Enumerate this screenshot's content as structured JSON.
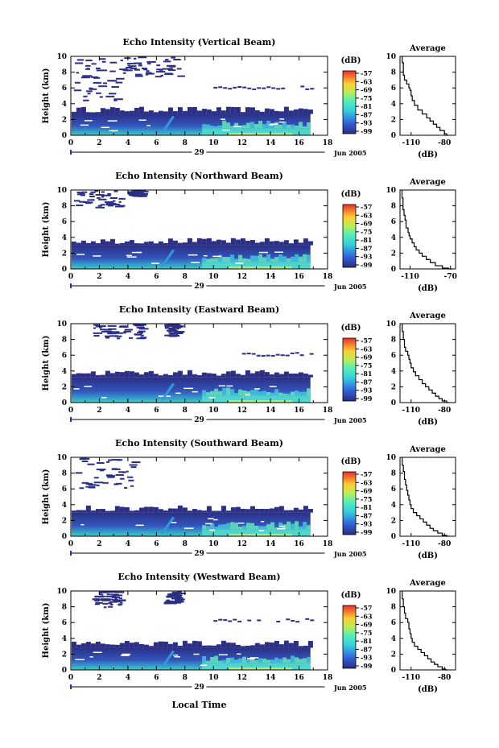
{
  "figure": {
    "xlabel": "Local Time",
    "date_label": "Jun 2005",
    "day_label": "29",
    "colorbar_unit": "(dB)",
    "colorbar_ticks": [
      -57,
      -63,
      -69,
      -75,
      -81,
      -87,
      -93,
      -99
    ],
    "colors": {
      "cb_low": "#2a2a8a",
      "cb_mid": "#33cccc",
      "cb_high": "#e8302a"
    }
  },
  "chart_data": [
    {
      "type": "heatmap",
      "title": "Echo Intensity (Vertical Beam)",
      "ylabel": "Height (km)",
      "xlim": [
        0,
        18
      ],
      "ylim": [
        0,
        10
      ],
      "xticks": [
        0,
        2,
        4,
        6,
        8,
        10,
        12,
        14,
        16,
        18
      ],
      "yticks": [
        0,
        2,
        4,
        6,
        8,
        10
      ],
      "data_end_hour": 16.8,
      "low_layer_top_km": 2.7,
      "upper_echo": [
        {
          "x": [
            0.2,
            3.5
          ],
          "y": [
            4.5,
            10
          ]
        },
        {
          "x": [
            3.5,
            7.5
          ],
          "y": [
            7.5,
            10
          ]
        }
      ],
      "thin_layer": {
        "x": [
          10,
          16.8
        ],
        "y": 5.9
      }
    },
    {
      "type": "line",
      "title": "Average",
      "xlabel": "(dB)",
      "xticks": [
        -110,
        -80
      ],
      "yticks": [
        0,
        2,
        4,
        6,
        8,
        10
      ],
      "xlim": [
        -120,
        -70
      ],
      "ylim": [
        0,
        10
      ],
      "x": [
        -118,
        -117,
        -117,
        -116,
        -114,
        -112,
        -111,
        -110,
        -110,
        -109,
        -107,
        -104,
        -100,
        -96,
        -93,
        -90,
        -87,
        -84,
        -80,
        -78,
        -77
      ],
      "y": [
        10,
        9.2,
        8.5,
        7.6,
        7.0,
        6.5,
        6.0,
        5.7,
        5.4,
        5.0,
        4.4,
        3.8,
        3.2,
        2.7,
        2.2,
        1.8,
        1.4,
        1.0,
        0.6,
        0.2,
        0
      ]
    },
    {
      "type": "heatmap",
      "title": "Echo Intensity (Northward Beam)",
      "ylabel": "Height (km)",
      "xlim": [
        0,
        18
      ],
      "ylim": [
        0,
        10
      ],
      "xticks": [
        0,
        2,
        4,
        6,
        8,
        10,
        12,
        14,
        16,
        18
      ],
      "yticks": [
        0,
        2,
        4,
        6,
        8,
        10
      ],
      "data_end_hour": 16.8,
      "low_layer_top_km": 3.0,
      "upper_echo": [
        {
          "x": [
            0.2,
            3.5
          ],
          "y": [
            7.8,
            10
          ]
        },
        {
          "x": [
            4,
            5
          ],
          "y": [
            9.3,
            10
          ]
        }
      ],
      "thin_layer": null
    },
    {
      "type": "line",
      "title": "Average",
      "xlabel": "(dB)",
      "xticks": [
        -110,
        -70
      ],
      "yticks": [
        0,
        2,
        4,
        6,
        8,
        10
      ],
      "xlim": [
        -120,
        -65
      ],
      "ylim": [
        0,
        10
      ],
      "x": [
        -118,
        -117,
        -117,
        -116,
        -115,
        -114,
        -114,
        -112,
        -111,
        -110,
        -108,
        -106,
        -104,
        -101,
        -98,
        -94,
        -90,
        -85,
        -78,
        -72,
        -68
      ],
      "y": [
        10,
        9.0,
        8.2,
        7.5,
        6.8,
        6.2,
        5.8,
        5.2,
        4.6,
        4.2,
        3.8,
        3.3,
        2.8,
        2.4,
        2.0,
        1.6,
        1.2,
        0.8,
        0.4,
        0.1,
        0
      ]
    },
    {
      "type": "heatmap",
      "title": "Echo Intensity (Eastward Beam)",
      "ylabel": "Height (km)",
      "xlim": [
        0,
        18
      ],
      "ylim": [
        0,
        10
      ],
      "xticks": [
        0,
        2,
        4,
        6,
        8,
        10,
        12,
        14,
        16,
        18
      ],
      "yticks": [
        0,
        2,
        4,
        6,
        8,
        10
      ],
      "data_end_hour": 16.8,
      "low_layer_top_km": 3.2,
      "upper_echo": [
        {
          "x": [
            1.5,
            5
          ],
          "y": [
            8.2,
            10
          ]
        },
        {
          "x": [
            6.5,
            7.5
          ],
          "y": [
            8.5,
            10
          ]
        }
      ],
      "thin_layer": {
        "x": [
          12,
          16.8
        ],
        "y": 6.0
      }
    },
    {
      "type": "line",
      "title": "Average",
      "xlabel": "(dB)",
      "xticks": [
        -110,
        -80
      ],
      "yticks": [
        0,
        2,
        4,
        6,
        8,
        10
      ],
      "xlim": [
        -120,
        -70
      ],
      "ylim": [
        0,
        10
      ],
      "x": [
        -118,
        -117,
        -116,
        -115,
        -113,
        -112,
        -111,
        -110,
        -108,
        -106,
        -103,
        -100,
        -97,
        -94,
        -91,
        -88,
        -85,
        -82,
        -78,
        -76
      ],
      "y": [
        10,
        9.0,
        8.0,
        7.0,
        6.5,
        6.0,
        5.5,
        5.0,
        4.4,
        3.9,
        3.4,
        2.9,
        2.4,
        2.0,
        1.6,
        1.2,
        0.8,
        0.5,
        0.2,
        0
      ]
    },
    {
      "type": "heatmap",
      "title": "Echo Intensity (Southward Beam)",
      "ylabel": "Height (km)",
      "xlim": [
        0,
        18
      ],
      "ylim": [
        0,
        10
      ],
      "xticks": [
        0,
        2,
        4,
        6,
        8,
        10,
        12,
        14,
        16,
        18
      ],
      "yticks": [
        0,
        2,
        4,
        6,
        8,
        10
      ],
      "data_end_hour": 16.8,
      "low_layer_top_km": 3.0,
      "upper_echo": [
        {
          "x": [
            0.3,
            4.5
          ],
          "y": [
            6.2,
            10
          ]
        }
      ],
      "thin_layer": null
    },
    {
      "type": "line",
      "title": "Average",
      "xlabel": "(dB)",
      "xticks": [
        -110,
        -80
      ],
      "yticks": [
        0,
        2,
        4,
        6,
        8,
        10
      ],
      "xlim": [
        -120,
        -70
      ],
      "ylim": [
        0,
        10
      ],
      "x": [
        -118,
        -117,
        -116,
        -115,
        -114,
        -113,
        -112,
        -111,
        -110,
        -108,
        -105,
        -102,
        -99,
        -96,
        -93,
        -90,
        -86,
        -82,
        -78,
        -76
      ],
      "y": [
        10,
        9.0,
        8.2,
        7.2,
        6.5,
        5.8,
        5.2,
        4.6,
        4.0,
        3.5,
        3.0,
        2.6,
        2.2,
        1.8,
        1.4,
        1.0,
        0.7,
        0.4,
        0.1,
        0
      ]
    },
    {
      "type": "heatmap",
      "title": "Echo Intensity (Westward Beam)",
      "ylabel": "Height (km)",
      "xlim": [
        0,
        18
      ],
      "ylim": [
        0,
        10
      ],
      "xticks": [
        0,
        2,
        4,
        6,
        8,
        10,
        12,
        14,
        16,
        18
      ],
      "yticks": [
        0,
        2,
        4,
        6,
        8,
        10
      ],
      "data_end_hour": 16.8,
      "low_layer_top_km": 2.8,
      "upper_echo": [
        {
          "x": [
            1.5,
            3.5
          ],
          "y": [
            8.0,
            10
          ]
        },
        {
          "x": [
            6.5,
            7.5
          ],
          "y": [
            8.5,
            10
          ]
        }
      ],
      "thin_layer": {
        "x": [
          10,
          16.8
        ],
        "y": 6.2
      }
    },
    {
      "type": "line",
      "title": "Average",
      "xlabel": "(dB)",
      "xticks": [
        -110,
        -80
      ],
      "yticks": [
        0,
        2,
        4,
        6,
        8,
        10
      ],
      "xlim": [
        -120,
        -70
      ],
      "ylim": [
        0,
        10
      ],
      "x": [
        -118,
        -117,
        -116,
        -115,
        -113,
        -112,
        -111,
        -110,
        -109,
        -107,
        -104,
        -101,
        -98,
        -95,
        -92,
        -89,
        -86,
        -82,
        -79,
        -77
      ],
      "y": [
        10,
        9.0,
        8.0,
        7.2,
        6.5,
        6.0,
        5.2,
        4.6,
        4.0,
        3.5,
        3.0,
        2.6,
        2.2,
        1.8,
        1.4,
        1.0,
        0.7,
        0.4,
        0.1,
        0
      ]
    }
  ]
}
